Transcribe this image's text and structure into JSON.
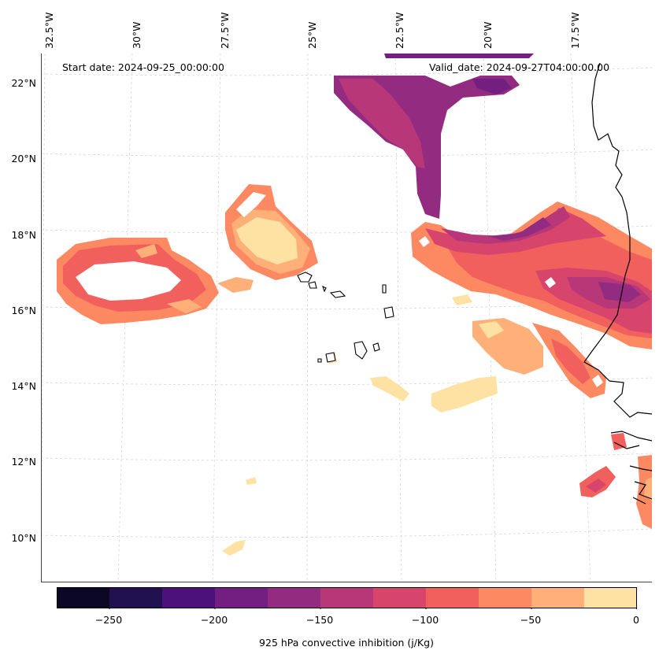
{
  "map": {
    "start_date": "Start date: 2024-09-25_00:00:00",
    "valid_date": "Valid_date: 2024-09-27T04:00:00.00",
    "lon_labels": [
      "32.5°W",
      "30°W",
      "27.5°W",
      "25°W",
      "22.5°W",
      "20°W",
      "17.5°W"
    ],
    "lat_labels": [
      "22°N",
      "20°N",
      "18°N",
      "16°N",
      "14°N",
      "12°N",
      "10°N"
    ],
    "features": [
      "coastline-africa",
      "cape-verde-islands",
      "gridlines"
    ]
  },
  "colorbar": {
    "title": "925 hPa convective inhibition (j/Kg)",
    "tick_labels": [
      "−250",
      "−200",
      "−150",
      "−100",
      "−50",
      "0"
    ],
    "range": [
      -275,
      0
    ],
    "levels": [
      -275,
      -250,
      -225,
      -200,
      -175,
      -150,
      -125,
      -100,
      -75,
      -50,
      -25,
      0
    ],
    "colors": [
      "#0b0724",
      "#221150",
      "#4c117a",
      "#721f81",
      "#932b80",
      "#b73779",
      "#d8456c",
      "#f1605d",
      "#fc8961",
      "#feb078",
      "#fde2a4"
    ]
  }
}
